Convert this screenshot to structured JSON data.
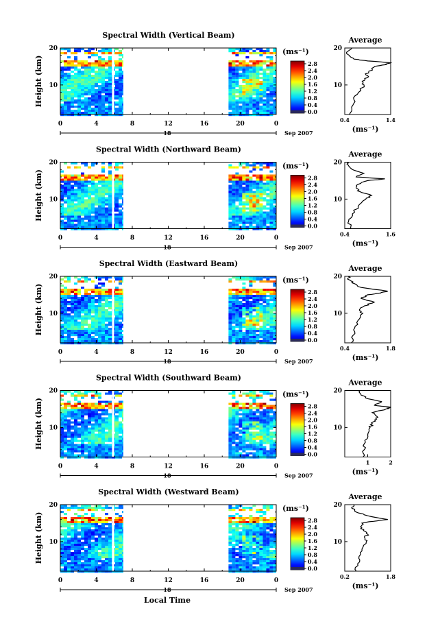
{
  "figure": {
    "xlabel": "Local Time",
    "colorbar_unit": "(ms⁻¹)",
    "colorbar_ticks": [
      "0.0",
      "0.4",
      "0.8",
      "1.2",
      "1.6",
      "2.0",
      "2.4",
      "2.8"
    ],
    "time_ticks": [
      "0",
      "4",
      "8",
      "12",
      "16",
      "20",
      "0"
    ],
    "date_day": "18",
    "date_month": "Sep 2007",
    "height_ticks": [
      "20",
      "10"
    ],
    "avg_title": "Average",
    "avg_unit": "(ms⁻¹)",
    "ylabel": "Height (km)"
  },
  "chart_data": [
    {
      "type": "heatmap",
      "title": "Spectral Width (Vertical Beam)",
      "x_range_hours": [
        0,
        24
      ],
      "y_range_km": [
        2,
        20
      ],
      "data_segments_hours": [
        [
          0,
          7
        ],
        [
          18.7,
          24
        ]
      ],
      "profile": {
        "xlim": [
          0.4,
          1.4
        ],
        "xticks": [
          "0.4",
          "1.4"
        ],
        "height_km": [
          2,
          4,
          6,
          8,
          10,
          11,
          12,
          13,
          14,
          15,
          15.5,
          16,
          16.5,
          17,
          18,
          19,
          20
        ],
        "width_ms": [
          0.5,
          0.55,
          0.6,
          0.7,
          0.82,
          0.78,
          0.9,
          0.85,
          1.0,
          1.05,
          1.3,
          1.4,
          0.9,
          0.6,
          0.5,
          0.45,
          0.55
        ]
      }
    },
    {
      "type": "heatmap",
      "title": "Spectral Width (Northward Beam)",
      "x_range_hours": [
        0,
        24
      ],
      "y_range_km": [
        2,
        20
      ],
      "data_segments_hours": [
        [
          0,
          7
        ],
        [
          18.7,
          24
        ]
      ],
      "profile": {
        "xlim": [
          0.4,
          1.6
        ],
        "xticks": [
          "0.4",
          "1.6"
        ],
        "height_km": [
          2,
          4,
          6,
          8,
          10,
          11,
          12,
          13,
          14,
          15,
          15.5,
          16,
          17,
          18,
          19,
          20
        ],
        "width_ms": [
          0.55,
          0.5,
          0.6,
          0.75,
          0.95,
          1.1,
          0.8,
          0.7,
          0.75,
          1.0,
          1.45,
          0.7,
          0.9,
          0.6,
          0.5,
          0.45
        ]
      }
    },
    {
      "type": "heatmap",
      "title": "Spectral Width (Eastward Beam)",
      "x_range_hours": [
        0,
        24
      ],
      "y_range_km": [
        2,
        20
      ],
      "data_segments_hours": [
        [
          0,
          7
        ],
        [
          18.7,
          24
        ]
      ],
      "profile": {
        "xlim": [
          0.4,
          1.8
        ],
        "xticks": [
          "0.4",
          "1.8"
        ],
        "height_km": [
          2,
          4,
          6,
          8,
          10,
          11,
          12,
          13,
          14,
          15,
          15.5,
          16,
          17,
          18,
          19,
          20
        ],
        "width_ms": [
          0.6,
          0.65,
          0.7,
          0.8,
          0.95,
          0.85,
          1.0,
          1.3,
          0.9,
          1.1,
          1.5,
          1.7,
          0.9,
          0.7,
          0.55,
          0.5
        ]
      }
    },
    {
      "type": "heatmap",
      "title": "Spectral Width (Southward Beam)",
      "x_range_hours": [
        0,
        24
      ],
      "y_range_km": [
        2,
        20
      ],
      "data_segments_hours": [
        [
          0,
          7
        ],
        [
          18.7,
          24
        ]
      ],
      "profile": {
        "xlim": [
          0,
          2
        ],
        "xticks": [
          "1",
          "2"
        ],
        "height_km": [
          2,
          4,
          6,
          8,
          10,
          11,
          12,
          13,
          14,
          15,
          15.5,
          16,
          17,
          18,
          19,
          20
        ],
        "width_ms": [
          0.8,
          0.85,
          0.9,
          1.0,
          1.1,
          1.2,
          1.3,
          1.4,
          1.2,
          1.8,
          2.0,
          1.3,
          1.6,
          0.9,
          0.7,
          0.6
        ]
      }
    },
    {
      "type": "heatmap",
      "title": "Spectral Width (Westward Beam)",
      "x_range_hours": [
        0,
        24
      ],
      "y_range_km": [
        2,
        20
      ],
      "data_segments_hours": [
        [
          0,
          7
        ],
        [
          18.7,
          24
        ]
      ],
      "profile": {
        "xlim": [
          0.2,
          1.8
        ],
        "xticks": [
          "0.2",
          "1.8"
        ],
        "height_km": [
          2,
          4,
          6,
          8,
          10,
          11,
          12,
          13,
          14,
          15,
          15.5,
          16,
          17,
          18,
          19,
          20
        ],
        "width_ms": [
          0.6,
          0.65,
          0.7,
          0.8,
          0.95,
          0.9,
          1.0,
          0.85,
          0.75,
          0.8,
          1.2,
          1.7,
          1.0,
          0.6,
          0.45,
          0.5
        ]
      }
    }
  ]
}
